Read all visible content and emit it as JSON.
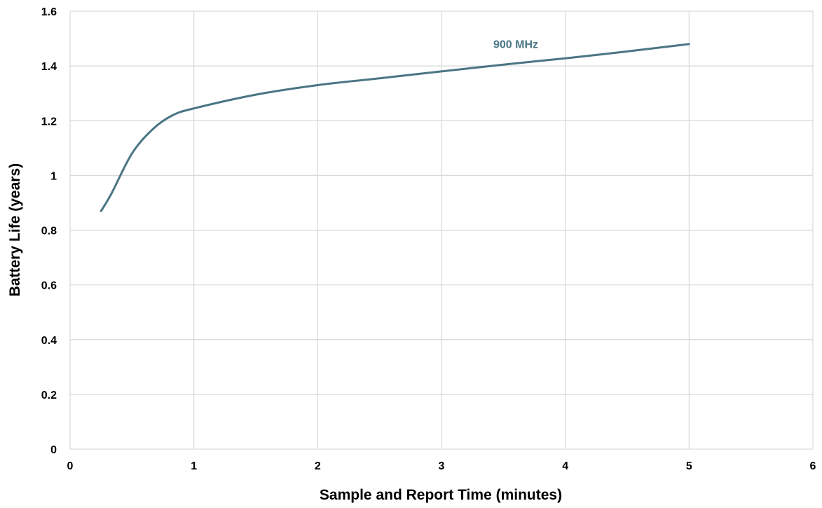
{
  "chart_data": {
    "type": "line",
    "title": "",
    "xlabel": "Sample and Report Time (minutes)",
    "ylabel": "Battery Life (years)",
    "xlim": [
      0,
      6
    ],
    "ylim": [
      0,
      1.6
    ],
    "x_ticks": [
      0,
      1,
      2,
      3,
      4,
      5,
      6
    ],
    "y_ticks": [
      0,
      0.2,
      0.4,
      0.6,
      0.8,
      1,
      1.2,
      1.4,
      1.6
    ],
    "x_tick_labels": [
      "0",
      "1",
      "2",
      "3",
      "4",
      "5",
      "6"
    ],
    "y_tick_labels": [
      "0",
      "0.2",
      "0.4",
      "0.6",
      "0.8",
      "1",
      "1.2",
      "1.4",
      "1.6"
    ],
    "grid": true,
    "series": [
      {
        "name": "900 MHz",
        "color": "#4a7584",
        "x": [
          0.25,
          0.33,
          0.5,
          0.67,
          0.83,
          1,
          1.5,
          2,
          2.5,
          3,
          3.5,
          4,
          4.5,
          5
        ],
        "y": [
          0.87,
          0.93,
          1.08,
          1.17,
          1.22,
          1.245,
          1.295,
          1.33,
          1.355,
          1.38,
          1.405,
          1.428,
          1.453,
          1.48
        ]
      }
    ]
  }
}
